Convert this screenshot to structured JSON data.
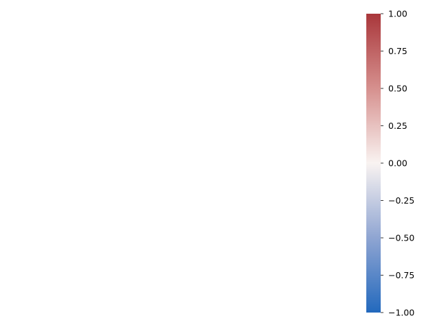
{
  "chart_data": {
    "type": "heatmap",
    "title": "",
    "xlabel": "",
    "ylabel": "",
    "categories": [],
    "values": [],
    "colorbar": {
      "vmin": -1.0,
      "vmax": 1.0,
      "colormap": "vlag",
      "colors": {
        "min": "#2369bd",
        "mid": "#f9f3f1",
        "max": "#a9373b"
      },
      "ticks": [
        1.0,
        0.75,
        0.5,
        0.25,
        0.0,
        -0.25,
        -0.5,
        -0.75,
        -1.0
      ],
      "tick_labels": [
        "1.00",
        "0.75",
        "0.50",
        "0.25",
        "0.00",
        "−0.25",
        "−0.50",
        "−0.75",
        "−1.00"
      ]
    }
  }
}
